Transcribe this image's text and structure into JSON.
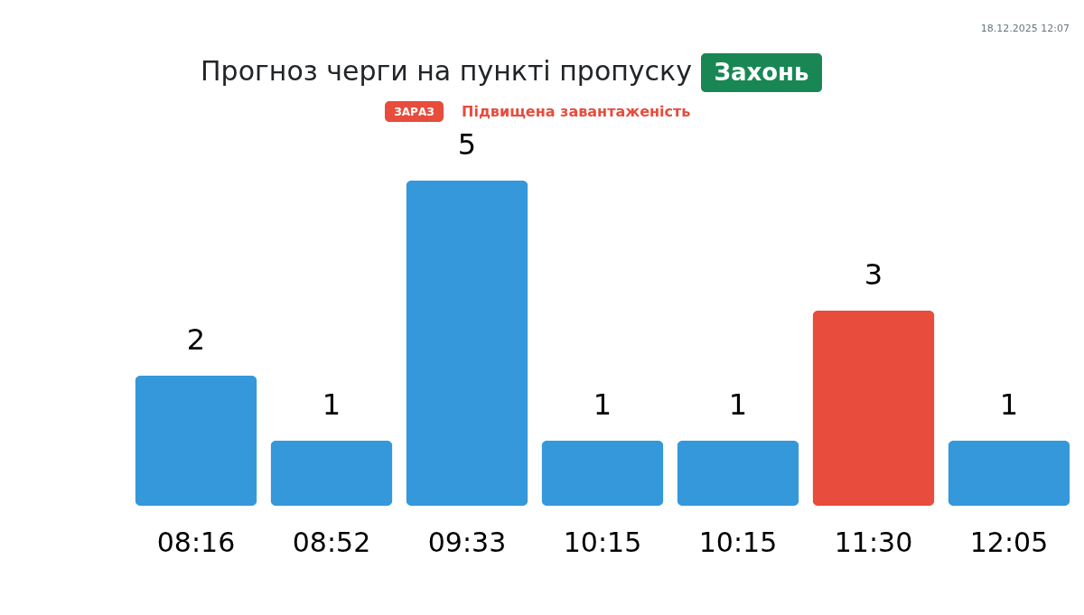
{
  "chart_data": {
    "type": "bar",
    "title": "Прогноз черги на пункті пропуску Захонь",
    "subtitle": "Підвищена завантаженість",
    "annotations": [
      "ЗАРАЗ",
      "18.12.2025 12:07"
    ],
    "categories": [
      "08:16",
      "08:52",
      "09:33",
      "10:15",
      "10:15",
      "11:30",
      "12:05"
    ],
    "values": [
      2,
      1,
      5,
      1,
      1,
      3,
      1
    ],
    "colors": [
      "#3498db",
      "#3498db",
      "#3498db",
      "#3498db",
      "#3498db",
      "#e74c3c",
      "#3498db"
    ],
    "data_labels": true,
    "tick_labels": "x"
  }
}
